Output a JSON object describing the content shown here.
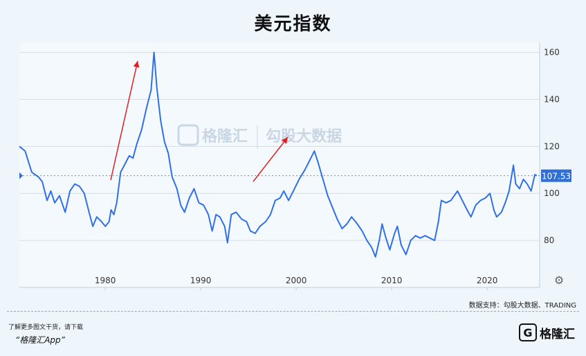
{
  "title": "美元指数",
  "chart_data": {
    "type": "line",
    "title": "美元指数",
    "xlabel": "",
    "ylabel": "",
    "xlim": [
      1971,
      2025.5
    ],
    "ylim": [
      60,
      164
    ],
    "x_ticks": [
      "1980",
      "1990",
      "2000",
      "2010",
      "2020"
    ],
    "y_ticks": [
      "80",
      "100",
      "120",
      "140",
      "160"
    ],
    "reference_line": {
      "value": 107.53,
      "label": "107.53"
    },
    "series": [
      {
        "values": [
          [
            1971.0,
            120
          ],
          [
            1971.6,
            118
          ],
          [
            1972.3,
            109
          ],
          [
            1973.0,
            107
          ],
          [
            1973.4,
            105
          ],
          [
            1973.9,
            97
          ],
          [
            1974.3,
            101
          ],
          [
            1974.7,
            96
          ],
          [
            1975.2,
            99
          ],
          [
            1975.8,
            92
          ],
          [
            1976.3,
            101
          ],
          [
            1976.8,
            104
          ],
          [
            1977.3,
            103
          ],
          [
            1977.8,
            100
          ],
          [
            1978.3,
            92
          ],
          [
            1978.7,
            86
          ],
          [
            1979.1,
            90
          ],
          [
            1979.6,
            88
          ],
          [
            1980.0,
            86
          ],
          [
            1980.4,
            88
          ],
          [
            1980.6,
            93
          ],
          [
            1980.9,
            91
          ],
          [
            1981.2,
            96
          ],
          [
            1981.6,
            109
          ],
          [
            1982.0,
            112
          ],
          [
            1982.5,
            116
          ],
          [
            1982.9,
            115
          ],
          [
            1983.3,
            121
          ],
          [
            1983.8,
            127
          ],
          [
            1984.3,
            136
          ],
          [
            1984.8,
            144
          ],
          [
            1985.1,
            160
          ],
          [
            1985.4,
            145
          ],
          [
            1985.8,
            131
          ],
          [
            1986.2,
            122
          ],
          [
            1986.6,
            117
          ],
          [
            1987.0,
            107
          ],
          [
            1987.5,
            102
          ],
          [
            1987.9,
            95
          ],
          [
            1988.3,
            92
          ],
          [
            1988.8,
            98
          ],
          [
            1989.3,
            102
          ],
          [
            1989.8,
            96
          ],
          [
            1990.3,
            95
          ],
          [
            1990.8,
            91
          ],
          [
            1991.2,
            84
          ],
          [
            1991.6,
            91
          ],
          [
            1992.0,
            90
          ],
          [
            1992.5,
            86
          ],
          [
            1992.8,
            79
          ],
          [
            1993.2,
            91
          ],
          [
            1993.7,
            92
          ],
          [
            1994.3,
            89
          ],
          [
            1994.8,
            88
          ],
          [
            1995.2,
            84
          ],
          [
            1995.7,
            83
          ],
          [
            1996.2,
            86
          ],
          [
            1996.8,
            88
          ],
          [
            1997.3,
            91
          ],
          [
            1997.8,
            97
          ],
          [
            1998.3,
            98
          ],
          [
            1998.7,
            101
          ],
          [
            1999.2,
            97
          ],
          [
            1999.7,
            101
          ],
          [
            2000.3,
            106
          ],
          [
            2000.9,
            110
          ],
          [
            2001.4,
            114
          ],
          [
            2001.9,
            118
          ],
          [
            2002.3,
            113
          ],
          [
            2002.8,
            106
          ],
          [
            2003.3,
            99
          ],
          [
            2003.8,
            94
          ],
          [
            2004.3,
            89
          ],
          [
            2004.8,
            85
          ],
          [
            2005.3,
            87
          ],
          [
            2005.8,
            90
          ],
          [
            2006.4,
            87
          ],
          [
            2006.9,
            84
          ],
          [
            2007.4,
            80
          ],
          [
            2007.9,
            77
          ],
          [
            2008.3,
            73
          ],
          [
            2008.7,
            80
          ],
          [
            2009.0,
            87
          ],
          [
            2009.4,
            81
          ],
          [
            2009.8,
            76
          ],
          [
            2010.3,
            83
          ],
          [
            2010.6,
            86
          ],
          [
            2011.0,
            78
          ],
          [
            2011.5,
            74
          ],
          [
            2012.0,
            80
          ],
          [
            2012.5,
            82
          ],
          [
            2013.0,
            81
          ],
          [
            2013.5,
            82
          ],
          [
            2014.0,
            81
          ],
          [
            2014.5,
            80
          ],
          [
            2014.9,
            88
          ],
          [
            2015.2,
            97
          ],
          [
            2015.7,
            96
          ],
          [
            2016.2,
            97
          ],
          [
            2016.9,
            101
          ],
          [
            2017.4,
            97
          ],
          [
            2017.9,
            93
          ],
          [
            2018.3,
            90
          ],
          [
            2018.8,
            95
          ],
          [
            2019.3,
            97
          ],
          [
            2019.8,
            98
          ],
          [
            2020.3,
            100
          ],
          [
            2020.7,
            93
          ],
          [
            2021.0,
            90
          ],
          [
            2021.5,
            92
          ],
          [
            2021.9,
            96
          ],
          [
            2022.3,
            101
          ],
          [
            2022.75,
            112
          ],
          [
            2023.0,
            104
          ],
          [
            2023.4,
            102
          ],
          [
            2023.8,
            106
          ],
          [
            2024.2,
            104
          ],
          [
            2024.6,
            101
          ],
          [
            2025.0,
            108
          ],
          [
            2025.2,
            107.53
          ]
        ]
      }
    ]
  }
}
